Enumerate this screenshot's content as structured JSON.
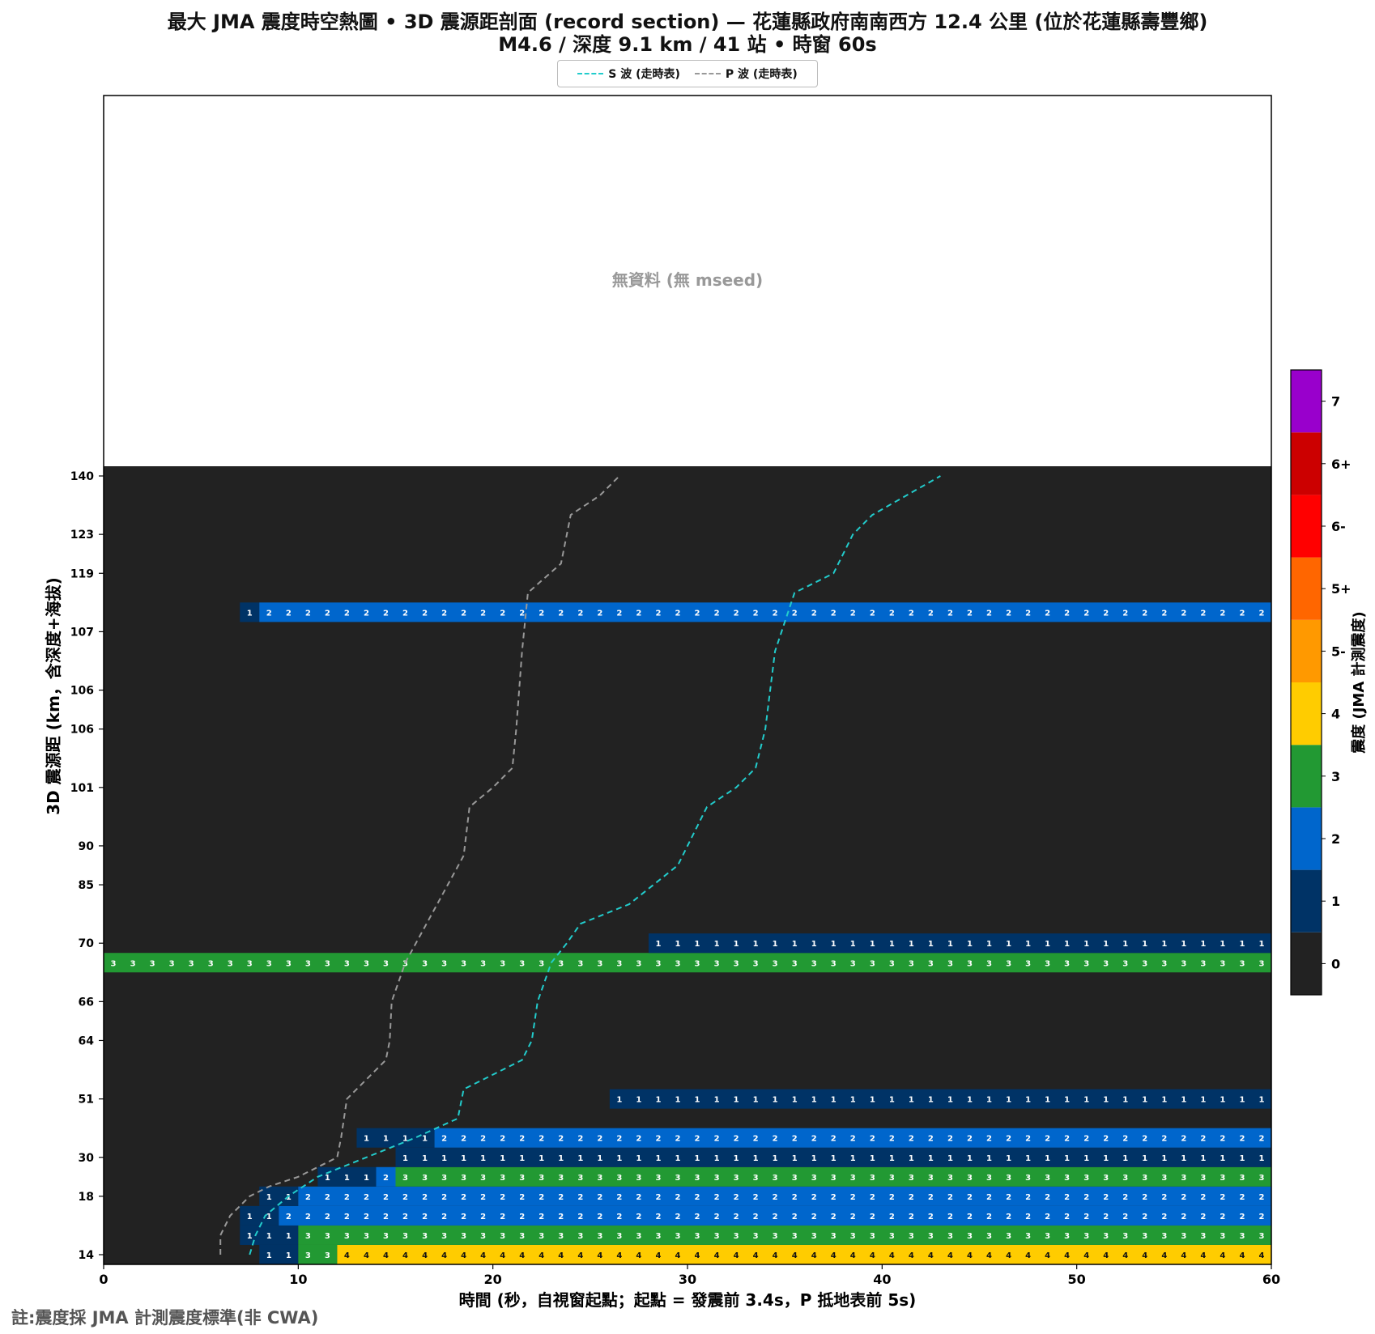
{
  "title_line1": "最大 JMA 震度時空熱圖 • 3D 震源距剖面 (record section) — 花蓮縣政府南南西方 12.4 公里 (位於花蓮縣壽豐鄉)",
  "title_line2": "M4.6 / 深度 9.1 km / 41 站 • 時窗 60s",
  "footnote": "註:震度採 JMA 計測震度標準(非 CWA)",
  "chart_data": {
    "type": "heatmap",
    "xlabel": "時間 (秒，自視窗起點；起點 = 發震前 3.4s，P 抵地表前 5s)",
    "ylabel": "3D 震源距 (km，含深度+海拔)",
    "xlim": [
      0,
      60
    ],
    "x_ticks": [
      0,
      10,
      20,
      30,
      40,
      50,
      60
    ],
    "y_tick_labels": [
      "140",
      "123",
      "119",
      "107",
      "106",
      "106",
      "101",
      "90",
      "85",
      "70",
      "66",
      "64",
      "51",
      "30",
      "18",
      "14"
    ],
    "y_ticks_at_row": [
      0,
      3,
      5,
      8,
      11,
      13,
      16,
      19,
      21,
      24,
      27,
      29,
      32,
      35,
      37,
      40
    ],
    "n_rows": 41,
    "time_bin_s": 1,
    "no_data_label": "無資料 (無 mseed)",
    "colorbar": {
      "label": "震度 (JMA 計測震度)",
      "levels": [
        "0",
        "1",
        "2",
        "3",
        "4",
        "5-",
        "5+",
        "6-",
        "6+",
        "7"
      ],
      "colors": [
        "#222222",
        "#003366",
        "#0066cc",
        "#229933",
        "#ffcc00",
        "#ff9900",
        "#ff6600",
        "#ff0000",
        "#cc0000",
        "#9900cc"
      ]
    },
    "legend": [
      {
        "name": "S 波 (走時表)",
        "color": "#22cccc"
      },
      {
        "name": "P 波 (走時表)",
        "color": "#999999"
      }
    ],
    "stations": [
      {
        "row": 40,
        "segments": [
          [
            8,
            10,
            1
          ],
          [
            10,
            12,
            3
          ],
          [
            12,
            60,
            4
          ]
        ]
      },
      {
        "row": 39,
        "segments": [
          [
            7,
            10,
            1
          ],
          [
            10,
            60,
            3
          ]
        ]
      },
      {
        "row": 38,
        "segments": [
          [
            7,
            9,
            1
          ],
          [
            9,
            60,
            2
          ]
        ]
      },
      {
        "row": 37,
        "segments": [
          [
            8,
            10,
            1
          ],
          [
            10,
            60,
            2
          ]
        ]
      },
      {
        "row": 36,
        "segments": [
          [
            11,
            14,
            1
          ],
          [
            14,
            15,
            2
          ],
          [
            15,
            60,
            3
          ]
        ]
      },
      {
        "row": 35,
        "segments": [
          [
            15,
            60,
            1
          ]
        ]
      },
      {
        "row": 34,
        "segments": [
          [
            13,
            17,
            1
          ],
          [
            17,
            60,
            2
          ]
        ]
      },
      {
        "row": 32,
        "segments": [
          [
            26,
            60,
            1
          ]
        ]
      },
      {
        "row": 25,
        "segments": [
          [
            0,
            60,
            3
          ]
        ]
      },
      {
        "row": 24,
        "segments": [
          [
            28,
            60,
            1
          ]
        ]
      },
      {
        "row": 7,
        "segments": [
          [
            7,
            8,
            1
          ],
          [
            8,
            60,
            2
          ]
        ]
      }
    ],
    "p_wave": [
      [
        6.0,
        40
      ],
      [
        6.0,
        39
      ],
      [
        6.5,
        38
      ],
      [
        7.5,
        37
      ],
      [
        8.5,
        36.5
      ],
      [
        10,
        36
      ],
      [
        11,
        35.5
      ],
      [
        12,
        35
      ],
      [
        12.2,
        34
      ],
      [
        12.5,
        32
      ],
      [
        14.5,
        30
      ],
      [
        14.7,
        29
      ],
      [
        14.8,
        27
      ],
      [
        15.5,
        25
      ],
      [
        18.5,
        19.5
      ],
      [
        18.8,
        17
      ],
      [
        20.0,
        16
      ],
      [
        21.0,
        15
      ],
      [
        21.2,
        13
      ],
      [
        21.5,
        9
      ],
      [
        21.8,
        6
      ],
      [
        23.5,
        4.5
      ],
      [
        24.0,
        2
      ],
      [
        25.5,
        1
      ],
      [
        26.5,
        0
      ]
    ],
    "s_wave": [
      [
        7.5,
        40
      ],
      [
        7.8,
        39
      ],
      [
        8.3,
        38
      ],
      [
        9.5,
        37
      ],
      [
        11,
        36
      ],
      [
        13.5,
        35
      ],
      [
        16,
        34
      ],
      [
        18.2,
        33
      ],
      [
        18.5,
        31.5
      ],
      [
        19.5,
        31
      ],
      [
        21.5,
        30
      ],
      [
        22.0,
        29
      ],
      [
        22.3,
        27
      ],
      [
        23.0,
        25
      ],
      [
        23.8,
        24
      ],
      [
        24.5,
        23
      ],
      [
        27.0,
        22
      ],
      [
        29.5,
        20
      ],
      [
        30.0,
        19
      ],
      [
        31.0,
        17
      ],
      [
        32.5,
        16
      ],
      [
        33.5,
        15
      ],
      [
        34.0,
        13
      ],
      [
        34.5,
        9
      ],
      [
        35.5,
        6
      ],
      [
        37.5,
        5
      ],
      [
        38.5,
        3
      ],
      [
        39.5,
        2
      ],
      [
        43.0,
        0
      ]
    ]
  }
}
